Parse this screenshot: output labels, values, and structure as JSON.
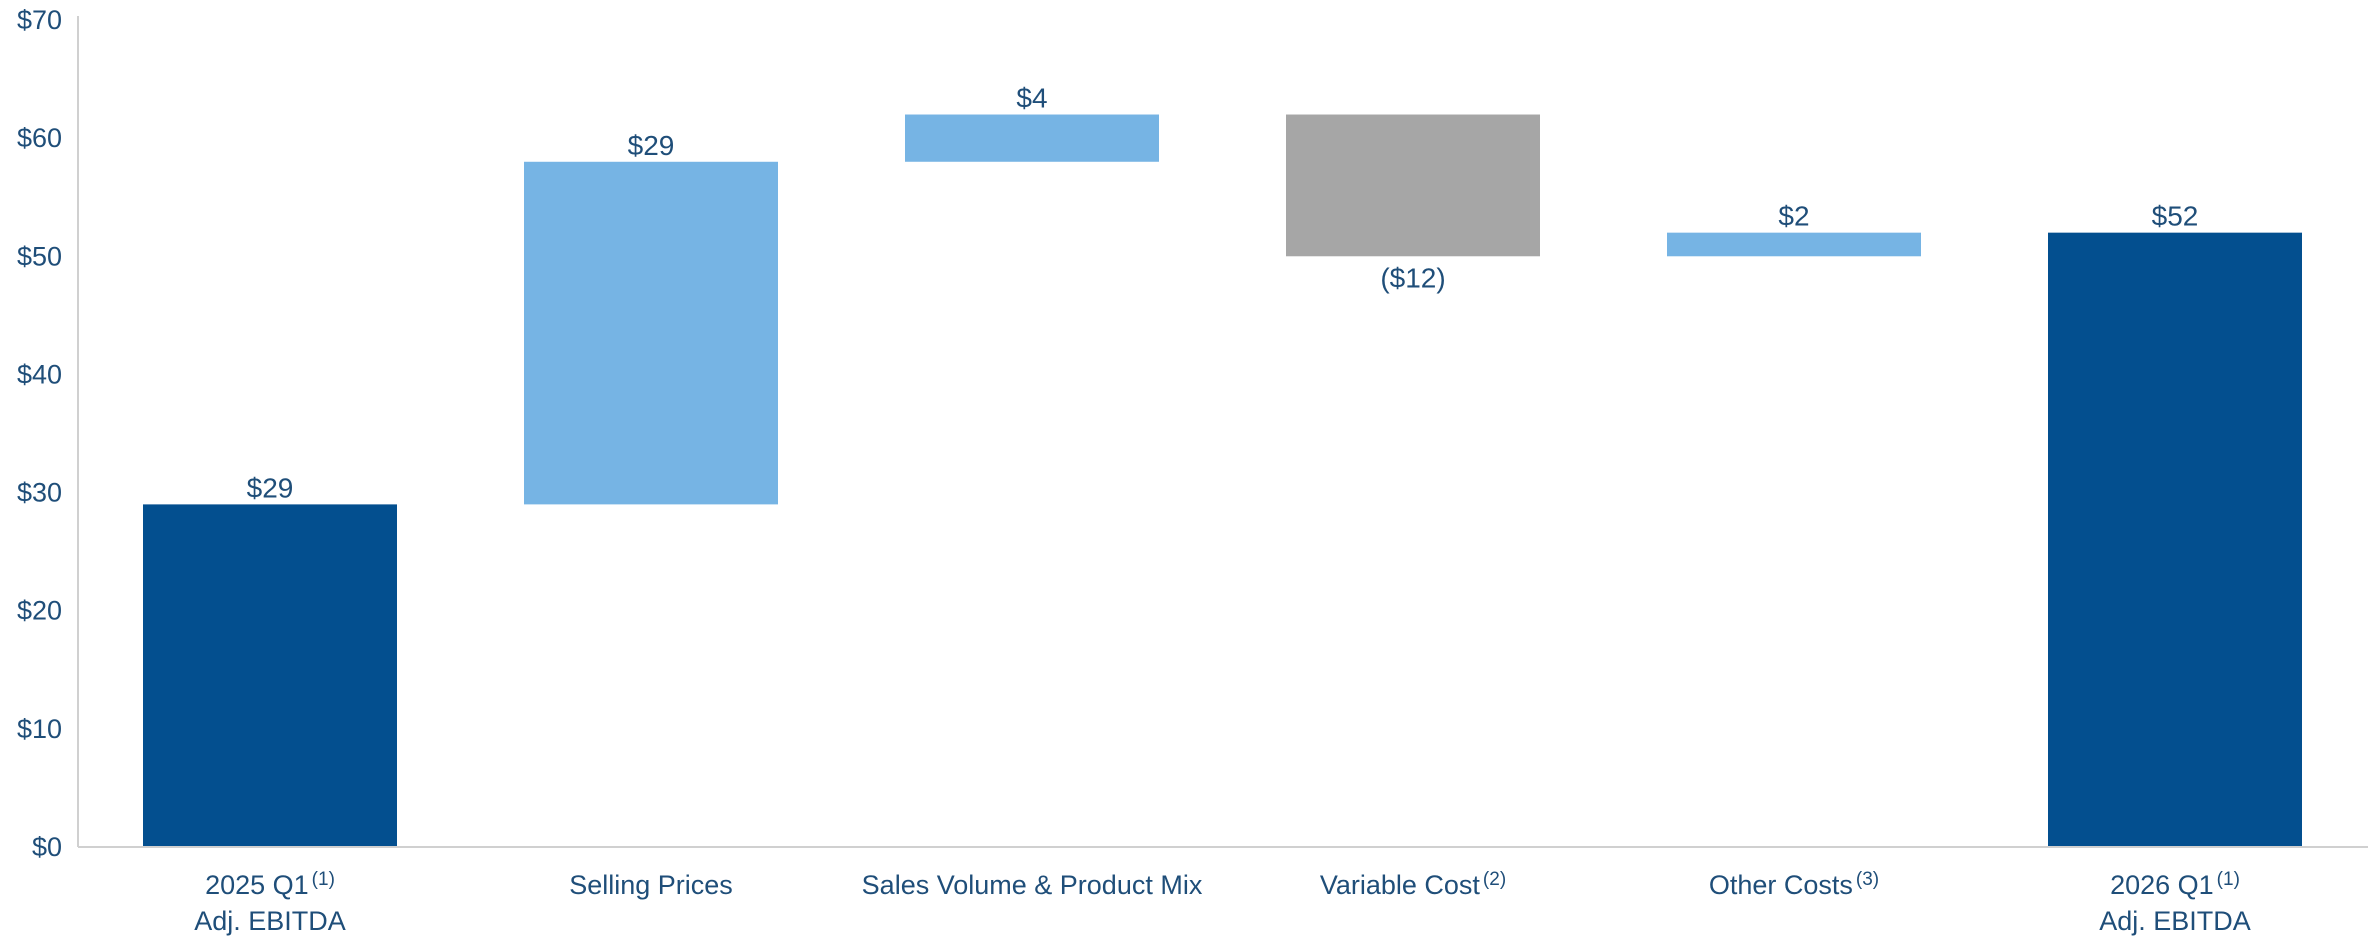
{
  "chart_data": {
    "type": "bar",
    "subtype": "waterfall",
    "categories": [
      {
        "line1": "2025 Q1",
        "footnote": "(1)",
        "line2": "Adj. EBITDA"
      },
      {
        "line1": "Selling Prices",
        "footnote": "",
        "line2": ""
      },
      {
        "line1": "Sales Volume & Product Mix",
        "footnote": "",
        "line2": ""
      },
      {
        "line1": "Variable Cost",
        "footnote": "(2)",
        "line2": ""
      },
      {
        "line1": "Other Costs",
        "footnote": "(3)",
        "line2": ""
      },
      {
        "line1": "2026 Q1",
        "footnote": "(1)",
        "line2": "Adj. EBITDA"
      }
    ],
    "bars": [
      {
        "kind": "total",
        "start": 0,
        "end": 29,
        "label": "$29"
      },
      {
        "kind": "increase",
        "start": 29,
        "end": 58,
        "label": "$29"
      },
      {
        "kind": "increase",
        "start": 58,
        "end": 62,
        "label": "$4"
      },
      {
        "kind": "decrease",
        "start": 62,
        "end": 50,
        "label": "($12)"
      },
      {
        "kind": "increase",
        "start": 50,
        "end": 52,
        "label": "$2"
      },
      {
        "kind": "total",
        "start": 0,
        "end": 52,
        "label": "$52"
      }
    ],
    "y_ticks": [
      "$0",
      "$10",
      "$20",
      "$30",
      "$40",
      "$50",
      "$60",
      "$70"
    ],
    "ylim": [
      0,
      70
    ],
    "grid": false,
    "legend": "none",
    "colors": {
      "total": "#034f8f",
      "increase": "#76b4e4",
      "decrease": "#a6a6a6",
      "text": "#1f4e79",
      "axis": "#d0d0d0"
    }
  }
}
